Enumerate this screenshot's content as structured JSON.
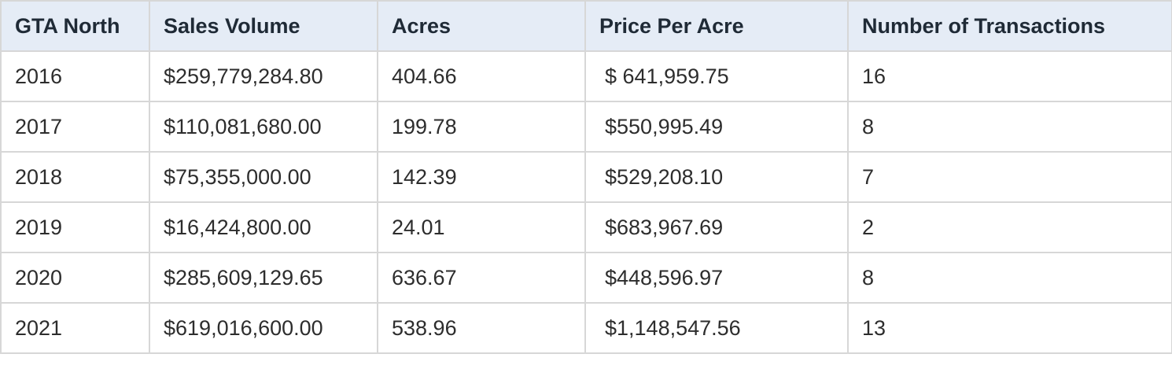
{
  "table": {
    "headers": [
      "GTA North",
      "Sales Volume",
      "Acres",
      "Price Per Acre",
      "Number of Transactions"
    ],
    "rows": [
      [
        "2016",
        "$259,779,284.80",
        "404.66",
        "$ 641,959.75",
        "16"
      ],
      [
        "2017",
        "$110,081,680.00",
        "199.78",
        "$550,995.49",
        "8"
      ],
      [
        "2018",
        "$75,355,000.00",
        "142.39",
        "$529,208.10",
        "7"
      ],
      [
        "2019",
        "$16,424,800.00",
        "24.01",
        "$683,967.69",
        "2"
      ],
      [
        "2020",
        "$285,609,129.65",
        "636.67",
        "$448,596.97",
        "8"
      ],
      [
        "2021",
        "$619,016,600.00",
        "538.96",
        "$1,148,547.56",
        "13"
      ]
    ]
  },
  "colors": {
    "header_background": "#e5ecf6",
    "grid_line": "#d7d7d7"
  }
}
